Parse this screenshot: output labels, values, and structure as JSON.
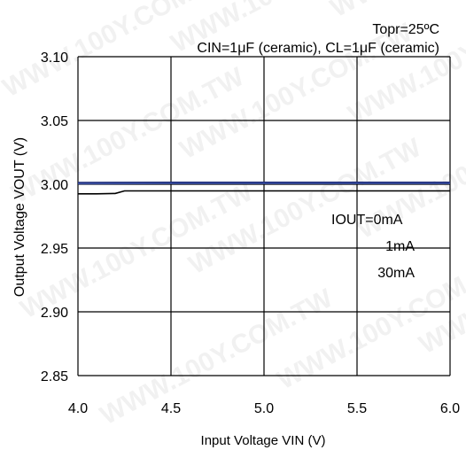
{
  "chart_data": {
    "type": "line",
    "header_line1": "Topr=25ºC",
    "header_line2": "CIN=1μF (ceramic), CL=1μF (ceramic)",
    "xlabel": "Input Voltage VIN (V)",
    "ylabel": "Output Voltage VOUT (V)",
    "xlim": [
      4.0,
      6.0
    ],
    "ylim": [
      2.85,
      3.1
    ],
    "xticks": [
      "4.0",
      "4.5",
      "5.0",
      "5.5",
      "6.0"
    ],
    "xtick_values": [
      4.0,
      4.5,
      5.0,
      5.5,
      6.0
    ],
    "yticks": [
      "3.10",
      "3.05",
      "3.00",
      "2.95",
      "2.90",
      "2.85"
    ],
    "ytick_values": [
      3.1,
      3.05,
      3.0,
      2.95,
      2.9,
      2.85
    ],
    "grid": true,
    "legend_title": "IOUT=0mA",
    "legend_items": [
      "1mA",
      "30mA"
    ],
    "series": [
      {
        "name": "IOUT=0mA",
        "color": "#1f2d7a",
        "x": [
          4.0,
          4.5,
          5.0,
          5.5,
          6.0
        ],
        "y": [
          3.0012,
          3.0013,
          3.0013,
          3.0013,
          3.0013
        ]
      },
      {
        "name": "1mA",
        "color": "#3a4fa0",
        "x": [
          4.0,
          4.5,
          5.0,
          5.5,
          6.0
        ],
        "y": [
          3.0004,
          3.0006,
          3.0006,
          3.0006,
          3.0006
        ]
      },
      {
        "name": "30mA",
        "color": "#000000",
        "x": [
          4.0,
          4.1,
          4.2,
          4.25,
          4.5,
          5.0,
          5.5,
          6.0
        ],
        "y": [
          2.9925,
          2.9925,
          2.9928,
          2.9948,
          2.9948,
          2.9948,
          2.9948,
          2.9948
        ]
      }
    ],
    "watermark": "WWW.100Y.COM.TW"
  }
}
